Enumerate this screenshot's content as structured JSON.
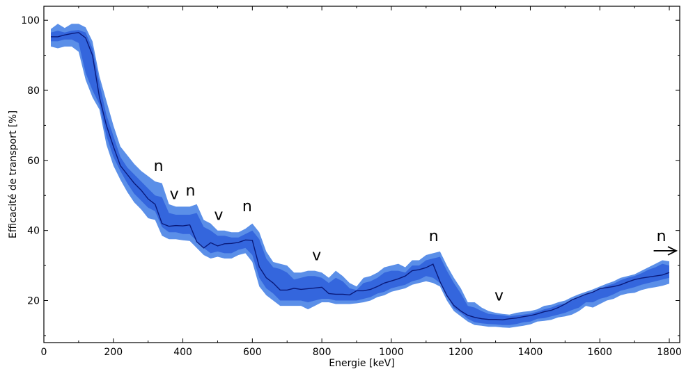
{
  "chart_data": {
    "type": "area",
    "title": "",
    "xlabel": "Energie [keV]",
    "ylabel": "Efficacité de transport [%]",
    "xlim": [
      0,
      1830
    ],
    "ylim": [
      8,
      104
    ],
    "xticks": [
      0,
      200,
      400,
      600,
      800,
      1000,
      1200,
      1400,
      1600,
      1800
    ],
    "yticks": [
      20,
      40,
      60,
      80,
      100
    ],
    "grid": false,
    "legend": "none",
    "x": [
      20,
      40,
      60,
      80,
      100,
      120,
      140,
      160,
      180,
      200,
      220,
      240,
      260,
      280,
      300,
      320,
      340,
      360,
      380,
      400,
      420,
      440,
      460,
      480,
      500,
      520,
      540,
      560,
      580,
      600,
      620,
      640,
      660,
      680,
      700,
      720,
      740,
      760,
      780,
      800,
      820,
      840,
      860,
      880,
      900,
      920,
      940,
      960,
      980,
      1000,
      1020,
      1040,
      1060,
      1080,
      1100,
      1120,
      1140,
      1160,
      1180,
      1200,
      1220,
      1240,
      1260,
      1280,
      1300,
      1320,
      1340,
      1360,
      1380,
      1400,
      1420,
      1440,
      1460,
      1480,
      1500,
      1520,
      1540,
      1560,
      1580,
      1600,
      1620,
      1640,
      1660,
      1680,
      1700,
      1720,
      1740,
      1760,
      1780,
      1800
    ],
    "series": [
      {
        "role": "outer-band",
        "color": "#5b8fe8",
        "upper": [
          97.5,
          99.0,
          97.8,
          99.0,
          99.0,
          98.0,
          94.0,
          84.0,
          77.0,
          70.0,
          64.0,
          61.5,
          59.0,
          57.0,
          55.5,
          54.0,
          53.5,
          47.5,
          46.8,
          46.8,
          46.8,
          47.5,
          43.0,
          42.0,
          40.0,
          40.0,
          39.5,
          39.5,
          40.5,
          42.0,
          39.5,
          34.0,
          31.0,
          30.5,
          30.0,
          28.0,
          28.0,
          28.5,
          28.5,
          28.0,
          26.5,
          28.5,
          27.0,
          25.0,
          24.0,
          26.5,
          27.0,
          28.0,
          29.5,
          30.0,
          30.5,
          29.5,
          31.5,
          31.5,
          33.0,
          33.5,
          34.0,
          30.0,
          26.5,
          23.5,
          19.5,
          19.5,
          18.0,
          17.0,
          16.5,
          16.2,
          16.0,
          16.5,
          16.8,
          17.0,
          17.5,
          18.5,
          18.8,
          19.5,
          20.0,
          21.0,
          21.8,
          22.5,
          23.2,
          24.0,
          24.8,
          25.5,
          26.5,
          27.0,
          27.5,
          28.5,
          29.5,
          30.5,
          31.5,
          31.2
        ],
        "lower": [
          92.5,
          92.0,
          92.5,
          92.5,
          91.0,
          83.0,
          78.0,
          74.5,
          64.5,
          58.5,
          54.5,
          51.0,
          48.0,
          46.0,
          43.5,
          43.0,
          38.5,
          37.5,
          37.5,
          37.2,
          37.0,
          35.0,
          33.0,
          32.0,
          32.5,
          32.0,
          32.0,
          33.0,
          33.5,
          31.0,
          24.0,
          21.5,
          20.0,
          18.5,
          18.5,
          18.5,
          18.5,
          17.5,
          18.5,
          19.5,
          19.5,
          19.0,
          19.0,
          19.0,
          19.2,
          19.5,
          20.0,
          21.0,
          21.5,
          22.5,
          23.0,
          23.5,
          24.5,
          25.0,
          25.5,
          25.0,
          24.0,
          20.0,
          17.0,
          15.5,
          14.0,
          13.0,
          12.8,
          12.5,
          12.5,
          12.3,
          12.2,
          12.5,
          12.8,
          13.2,
          14.0,
          14.2,
          14.5,
          15.2,
          15.5,
          16.0,
          17.0,
          18.5,
          18.0,
          19.0,
          20.0,
          20.5,
          21.5,
          22.0,
          22.2,
          23.0,
          23.5,
          23.8,
          24.2,
          24.8
        ]
      },
      {
        "role": "inner-band",
        "color": "#3466dd",
        "upper": [
          96.5,
          97.0,
          96.5,
          97.0,
          97.2,
          96.5,
          92.0,
          82.0,
          73.0,
          67.0,
          61.0,
          58.0,
          56.0,
          54.0,
          52.0,
          50.0,
          49.5,
          45.0,
          44.5,
          44.5,
          44.5,
          45.0,
          41.0,
          40.0,
          38.5,
          38.5,
          38.0,
          38.0,
          39.0,
          40.0,
          37.5,
          32.0,
          29.5,
          29.0,
          28.0,
          26.0,
          26.5,
          27.0,
          27.0,
          26.5,
          25.0,
          26.5,
          25.5,
          23.5,
          23.0,
          25.0,
          25.5,
          26.5,
          28.0,
          28.5,
          28.5,
          28.0,
          30.0,
          30.0,
          31.5,
          32.0,
          32.5,
          28.5,
          25.0,
          22.0,
          18.5,
          18.0,
          17.0,
          16.2,
          16.0,
          15.8,
          15.5,
          15.8,
          16.0,
          16.3,
          16.8,
          17.5,
          18.0,
          18.8,
          19.2,
          20.0,
          21.0,
          21.8,
          22.5,
          23.3,
          24.2,
          24.8,
          25.8,
          26.5,
          27.0,
          27.8,
          28.8,
          29.5,
          30.5,
          30.0
        ],
        "lower": [
          94.0,
          94.0,
          94.5,
          94.5,
          93.5,
          85.0,
          80.0,
          76.0,
          67.0,
          61.0,
          57.0,
          53.5,
          50.5,
          48.5,
          46.5,
          45.5,
          41.0,
          39.5,
          39.5,
          39.0,
          39.0,
          37.0,
          35.0,
          33.5,
          34.0,
          33.5,
          33.5,
          34.5,
          35.0,
          33.0,
          26.5,
          23.5,
          22.0,
          20.0,
          20.0,
          20.0,
          20.0,
          19.5,
          20.0,
          20.5,
          20.5,
          20.0,
          20.0,
          20.0,
          20.0,
          20.5,
          21.0,
          22.0,
          22.5,
          23.5,
          24.0,
          24.5,
          25.5,
          26.0,
          27.0,
          26.5,
          25.0,
          21.5,
          17.8,
          16.5,
          14.8,
          13.8,
          13.5,
          13.3,
          13.2,
          13.0,
          13.0,
          13.3,
          13.8,
          14.0,
          14.8,
          15.0,
          15.5,
          16.0,
          16.5,
          17.3,
          18.0,
          19.5,
          19.5,
          20.5,
          21.0,
          21.8,
          22.8,
          23.3,
          23.8,
          24.5,
          25.0,
          25.5,
          26.0,
          26.5
        ]
      },
      {
        "role": "central-line",
        "color": "#0a1a7a",
        "values": [
          95.3,
          95.3,
          95.8,
          96.2,
          96.5,
          95.0,
          90.0,
          78.0,
          70.0,
          64.0,
          58.5,
          56.0,
          53.5,
          51.5,
          49.0,
          47.5,
          42.0,
          41.2,
          41.4,
          41.3,
          41.6,
          36.8,
          35.0,
          36.5,
          35.6,
          36.2,
          36.3,
          36.6,
          37.3,
          37.2,
          29.6,
          26.5,
          25.0,
          23.0,
          23.0,
          23.5,
          23.2,
          23.4,
          23.6,
          23.8,
          22.0,
          21.8,
          21.8,
          21.6,
          22.8,
          22.8,
          23.2,
          24.0,
          25.0,
          25.6,
          26.2,
          27.0,
          28.5,
          28.8,
          29.4,
          30.4,
          25.4,
          21.4,
          18.6,
          17.0,
          15.8,
          15.2,
          14.8,
          14.6,
          14.6,
          14.5,
          14.8,
          15.0,
          15.4,
          15.7,
          16.2,
          16.8,
          17.2,
          18.0,
          19.0,
          20.2,
          21.0,
          21.8,
          22.4,
          23.4,
          23.7,
          24.0,
          24.5,
          25.3,
          26.0,
          26.4,
          26.7,
          27.0,
          27.3,
          28.0
        ]
      }
    ],
    "annotations": [
      {
        "text": "n",
        "x": 330,
        "y": 57
      },
      {
        "text": "v",
        "x": 375,
        "y": 49
      },
      {
        "text": "n",
        "x": 422,
        "y": 50
      },
      {
        "text": "v",
        "x": 503,
        "y": 43
      },
      {
        "text": "n",
        "x": 585,
        "y": 45.5
      },
      {
        "text": "v",
        "x": 785,
        "y": 31.5
      },
      {
        "text": "n",
        "x": 1122,
        "y": 37
      },
      {
        "text": "v",
        "x": 1310,
        "y": 20
      },
      {
        "text": "n",
        "x": 1777,
        "y": 37
      }
    ],
    "arrow": {
      "x_start": 1755,
      "x_end": 1820,
      "y": 34.2,
      "color": "#000000"
    }
  }
}
